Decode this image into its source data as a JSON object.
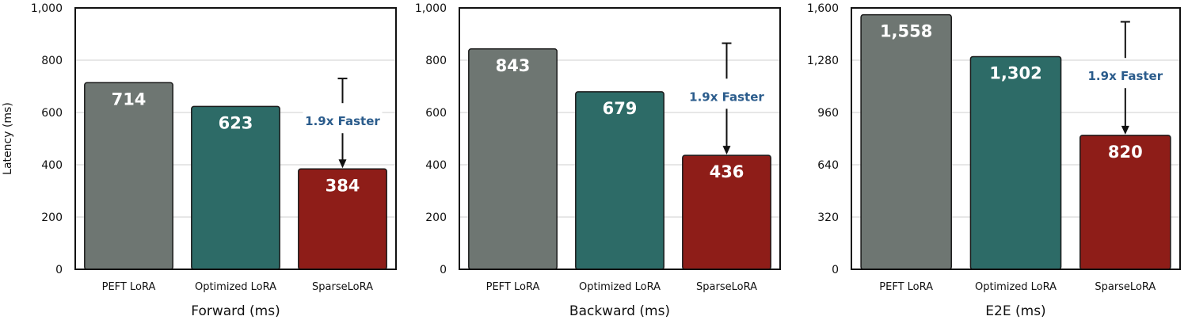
{
  "colors": {
    "baseline": "#6e7672",
    "optimized": "#2d6b67",
    "sparse": "#8e1d18",
    "annotation": "#2b5c8c"
  },
  "chart_data": [
    {
      "type": "bar",
      "categories": [
        "PEFT LoRA",
        "Optimized LoRA",
        "SparseLoRA"
      ],
      "values": [
        714,
        623,
        384
      ],
      "value_labels": [
        "714",
        "623",
        "384"
      ],
      "xlabel": "Forward (ms)",
      "ylabel": "Latency (ms)",
      "ylim": [
        0,
        1000
      ],
      "yticks": [
        0,
        200,
        400,
        600,
        800,
        1000
      ],
      "ytick_labels": [
        "0",
        "200",
        "400",
        "600",
        "800",
        "1,000"
      ],
      "grid": true,
      "annotation": {
        "text": "1.9x Faster",
        "from_value": 730,
        "to_value": 384
      }
    },
    {
      "type": "bar",
      "categories": [
        "PEFT LoRA",
        "Optimized LoRA",
        "SparseLoRA"
      ],
      "values": [
        843,
        679,
        436
      ],
      "value_labels": [
        "843",
        "679",
        "436"
      ],
      "xlabel": "Backward (ms)",
      "ylabel": "",
      "ylim": [
        0,
        1000
      ],
      "yticks": [
        0,
        200,
        400,
        600,
        800,
        1000
      ],
      "ytick_labels": [
        "0",
        "200",
        "400",
        "600",
        "800",
        "1,000"
      ],
      "grid": true,
      "annotation": {
        "text": "1.9x Faster",
        "from_value": 865,
        "to_value": 436
      }
    },
    {
      "type": "bar",
      "categories": [
        "PEFT LoRA",
        "Optimized LoRA",
        "SparseLoRA"
      ],
      "values": [
        1558,
        1302,
        820
      ],
      "value_labels": [
        "1,558",
        "1,302",
        "820"
      ],
      "xlabel": "E2E (ms)",
      "ylabel": "",
      "ylim": [
        0,
        1600
      ],
      "yticks": [
        0,
        320,
        640,
        960,
        1280,
        1600
      ],
      "ytick_labels": [
        "0",
        "320",
        "640",
        "960",
        "1,280",
        "1,600"
      ],
      "grid": true,
      "annotation": {
        "text": "1.9x Faster",
        "from_value": 1515,
        "to_value": 820
      }
    }
  ]
}
